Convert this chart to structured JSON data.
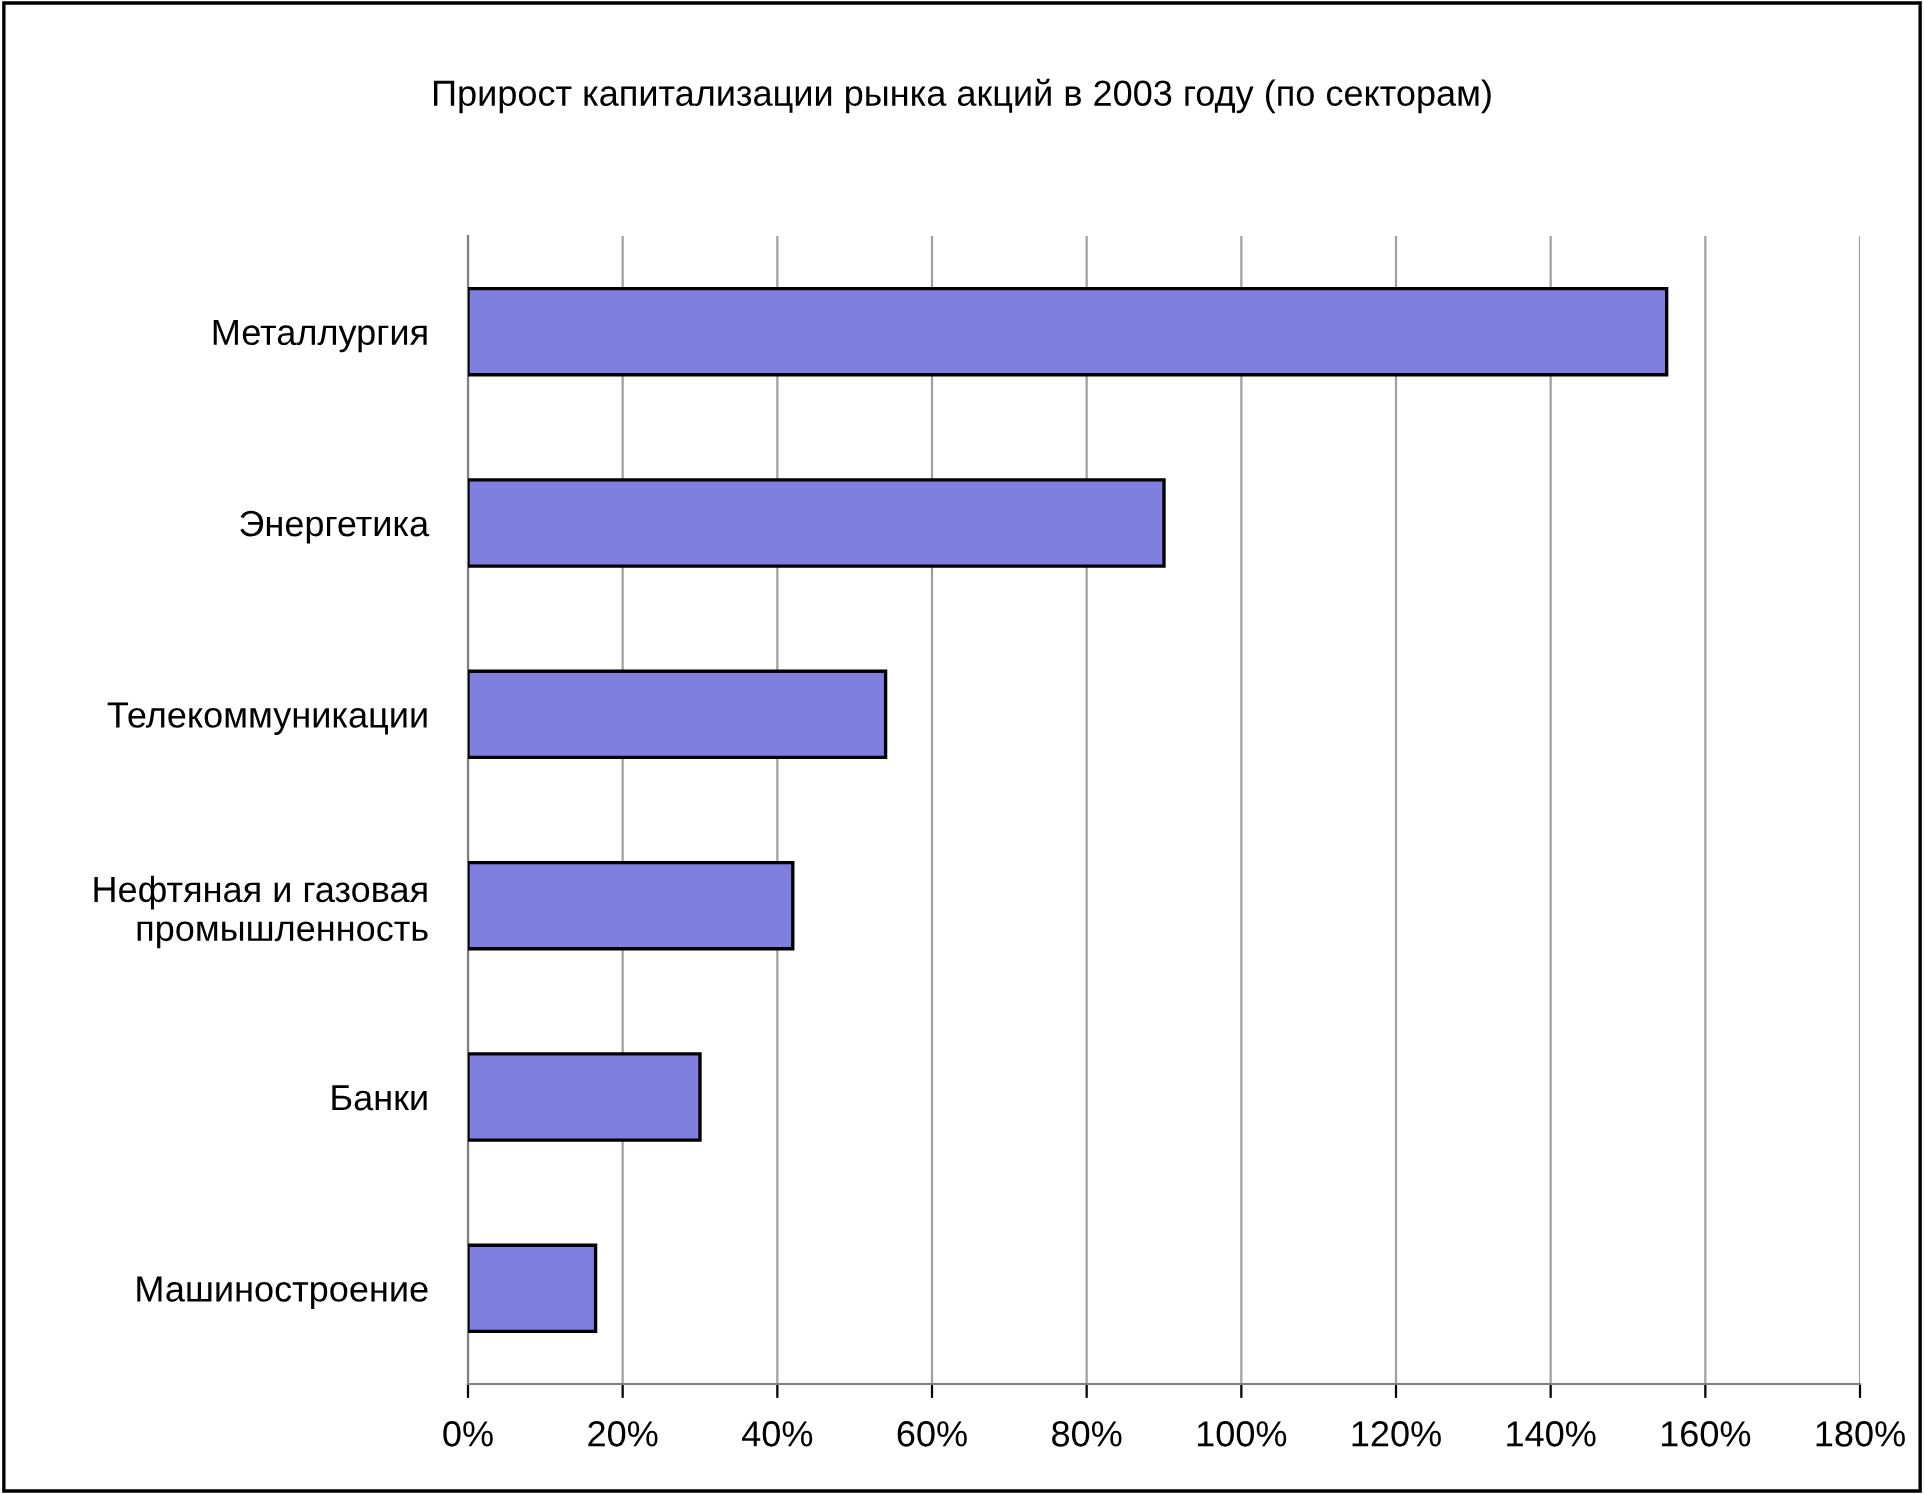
{
  "chart_data": {
    "type": "bar",
    "orientation": "horizontal",
    "title": "Прирост капитализации рынка акций в 2003 году (по секторам)",
    "categories": [
      "Металлургия",
      "Энергетика",
      "Телекоммуникации",
      "Нефтяная и газовая\nпромышленность",
      "Банки",
      "Машиностроение"
    ],
    "values": [
      155,
      90,
      54,
      42,
      30,
      16.5
    ],
    "color": "#7f7fe0",
    "xlim": [
      0,
      180
    ],
    "xticks": [
      {
        "value": 0,
        "label": "0%"
      },
      {
        "value": 20,
        "label": "20%"
      },
      {
        "value": 40,
        "label": "40%"
      },
      {
        "value": 60,
        "label": "60%"
      },
      {
        "value": 80,
        "label": "80%"
      },
      {
        "value": 100,
        "label": "100%"
      },
      {
        "value": 120,
        "label": "120%"
      },
      {
        "value": 140,
        "label": "140%"
      },
      {
        "value": 160,
        "label": "160%"
      },
      {
        "value": 180,
        "label": "180%"
      }
    ],
    "grid": "x"
  }
}
